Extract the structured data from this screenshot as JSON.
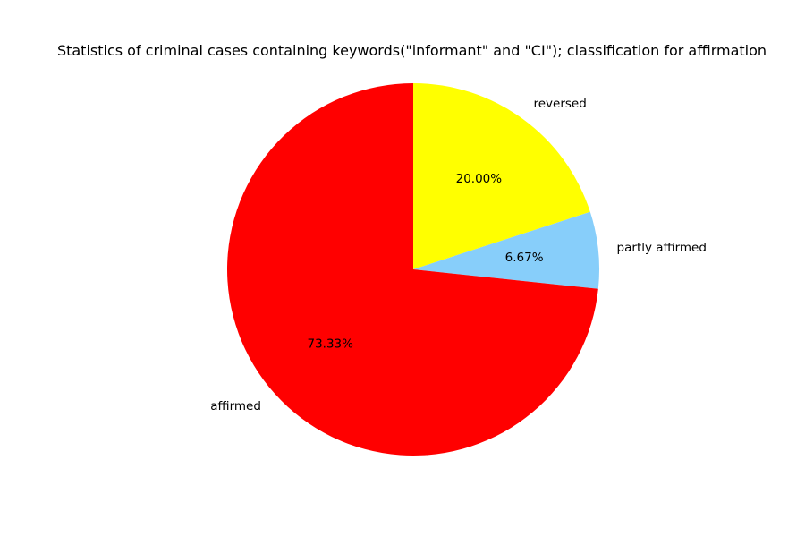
{
  "chart_data": {
    "type": "pie",
    "title": "Statistics of criminal cases containing keywords(\"informant\" and \"CI\"); classification for affirmation",
    "slices": [
      {
        "label": "reversed",
        "value": 20.0,
        "pct_label": "20.00%",
        "color": "#ffff00"
      },
      {
        "label": "partly affirmed",
        "value": 6.67,
        "pct_label": "6.67%",
        "color": "#87cefa"
      },
      {
        "label": "affirmed",
        "value": 73.33,
        "pct_label": "73.33%",
        "color": "#ff0000"
      }
    ],
    "start_angle_deg": 90,
    "direction": "clockwise",
    "legend": "none"
  }
}
